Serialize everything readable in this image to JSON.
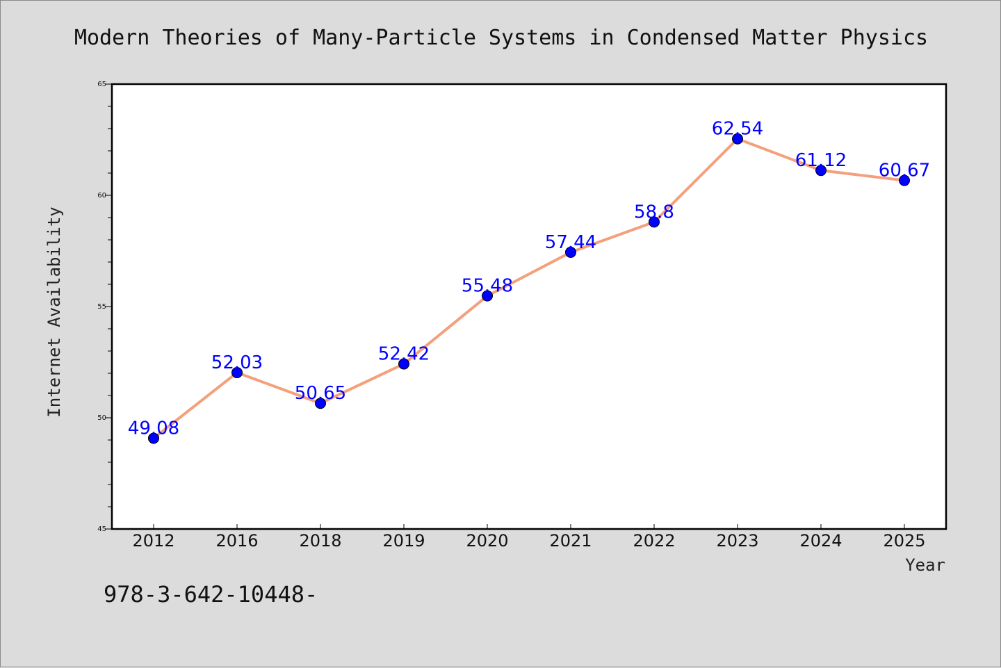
{
  "chart_data": {
    "type": "line",
    "title": "Modern Theories of Many-Particle Systems in Condensed Matter Physics",
    "xlabel": "Year",
    "ylabel": "Internet Availability",
    "categories": [
      "2012",
      "2016",
      "2018",
      "2019",
      "2020",
      "2021",
      "2022",
      "2023",
      "2024",
      "2025"
    ],
    "values": [
      49.08,
      52.03,
      50.65,
      52.42,
      55.48,
      57.44,
      58.8,
      62.54,
      61.12,
      60.67
    ],
    "data_labels": [
      "49.08",
      "52.03",
      "50.65",
      "52.42",
      "55.48",
      "57.44",
      "58.8",
      "62.54",
      "61.12",
      "60.67"
    ],
    "ylim": [
      45,
      65
    ],
    "yticks": [
      45,
      50,
      55,
      60,
      65
    ],
    "grid": false,
    "line_color": "#f4a07c",
    "marker_color": "#0000ff",
    "label_color": "#0000ff"
  },
  "footnote": "978-3-642-10448-"
}
